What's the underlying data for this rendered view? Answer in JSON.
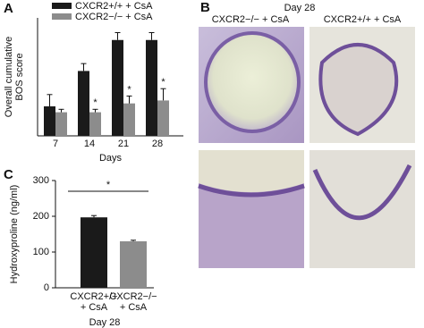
{
  "chart_data": [
    {
      "type": "bar",
      "label": "A",
      "ylabel": "Overall cumulative\nBOS score",
      "xlabel": "Days",
      "categories": [
        "7",
        "14",
        "21",
        "28"
      ],
      "ylim": [
        0,
        4
      ],
      "series": [
        {
          "name": "CXCR2+/+ + CsA",
          "color": "#1a1a1a",
          "values": [
            1.0,
            2.2,
            3.25,
            3.25
          ],
          "errors": [
            0.4,
            0.25,
            0.25,
            0.25
          ]
        },
        {
          "name": "CXCR2−/− + CsA",
          "color": "#8c8c8c",
          "values": [
            0.8,
            0.8,
            1.1,
            1.2
          ],
          "errors": [
            0.1,
            0.1,
            0.25,
            0.4
          ],
          "annotations": [
            null,
            "*",
            "*",
            "*"
          ]
        }
      ]
    },
    {
      "type": "bar",
      "label": "C",
      "ylabel": "Hydroxyproline (ng/ml)",
      "xlabel": "Day 28",
      "categories": [
        "CXCR2+/+\n+ CsA",
        "CXCR2−/−\n+ CsA"
      ],
      "ylim": [
        0,
        300
      ],
      "yticks": [
        0,
        100,
        200,
        300
      ],
      "values": [
        197,
        130
      ],
      "errors": [
        5,
        3
      ],
      "colors": [
        "#1a1a1a",
        "#8c8c8c"
      ],
      "significance": "*"
    }
  ],
  "panel_b": {
    "label": "B",
    "title": "Day 28",
    "columns": [
      "CXCR2−/− + CsA",
      "CXCR2+/+ + CsA"
    ]
  }
}
